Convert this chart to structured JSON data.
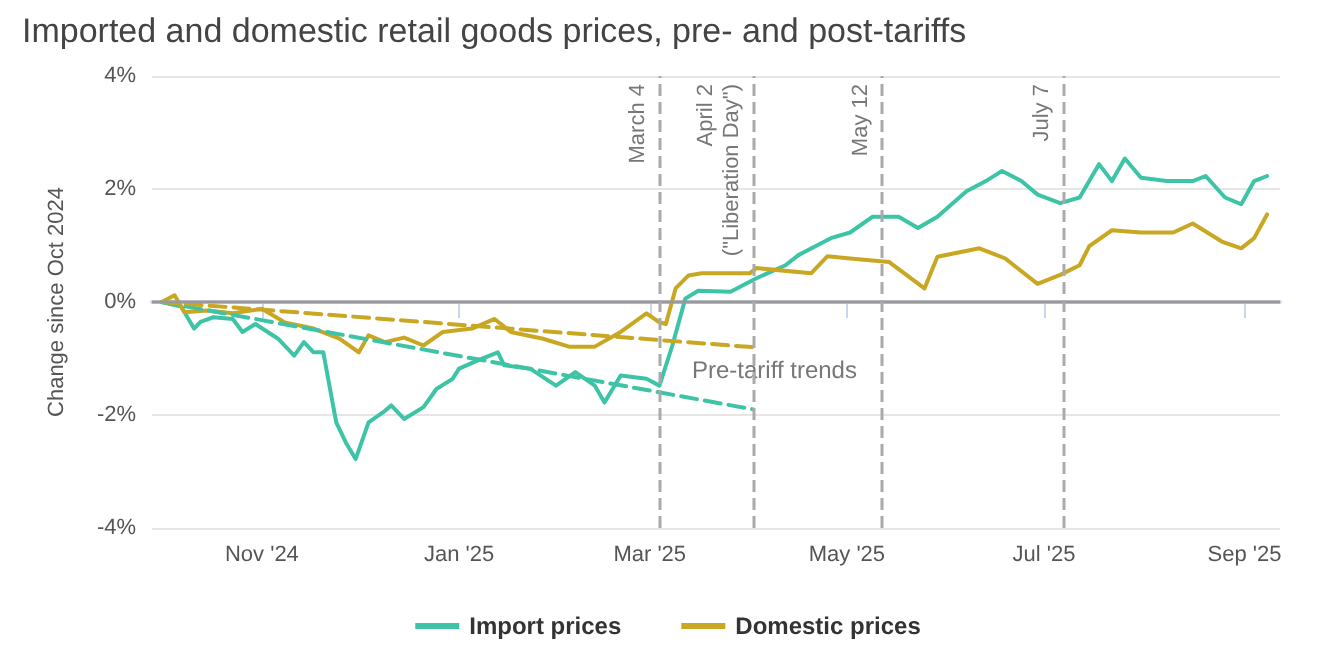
{
  "chart_data": {
    "type": "line",
    "title": "Imported and domestic retail goods prices, pre- and post-tariffs",
    "ylabel": "Change since Oct 2024",
    "xlim": [
      "2024-09-28",
      "2025-09-12"
    ],
    "xticks": [
      {
        "value": "2024-11-01",
        "label": "Nov '24"
      },
      {
        "value": "2025-01-01",
        "label": "Jan '25"
      },
      {
        "value": "2025-03-01",
        "label": "Mar '25"
      },
      {
        "value": "2025-05-01",
        "label": "May '25"
      },
      {
        "value": "2025-07-01",
        "label": "Jul '25"
      },
      {
        "value": "2025-09-01",
        "label": "Sep '25"
      }
    ],
    "ylim": [
      -4,
      4
    ],
    "yticks": [
      {
        "value": -4,
        "label": "-4%"
      },
      {
        "value": -2,
        "label": "-2%"
      },
      {
        "value": 0,
        "label": "0%"
      },
      {
        "value": 2,
        "label": "2%"
      },
      {
        "value": 4,
        "label": "4%"
      }
    ],
    "grid": "y",
    "legend": "bottom",
    "marker": "none",
    "line_style": "solid",
    "series": [
      {
        "name": "Import prices",
        "color": "#3dc4a6",
        "x": [
          "2024-10-01",
          "2024-10-07",
          "2024-10-11",
          "2024-10-13",
          "2024-10-17",
          "2024-10-23",
          "2024-10-26",
          "2024-10-30",
          "2024-11-06",
          "2024-11-11",
          "2024-11-14",
          "2024-11-17",
          "2024-11-20",
          "2024-11-24",
          "2024-11-27",
          "2024-11-30",
          "2024-12-04",
          "2024-12-09",
          "2024-12-11",
          "2024-12-15",
          "2024-12-21",
          "2024-12-25",
          "2024-12-30",
          "2025-01-01",
          "2025-01-07",
          "2025-01-13",
          "2025-01-15",
          "2025-01-23",
          "2025-01-31",
          "2025-02-06",
          "2025-02-12",
          "2025-02-15",
          "2025-02-20",
          "2025-02-28",
          "2025-03-04",
          "2025-03-08",
          "2025-03-12",
          "2025-03-16",
          "2025-03-26",
          "2025-04-03",
          "2025-04-12",
          "2025-04-16",
          "2025-04-22",
          "2025-04-26",
          "2025-05-02",
          "2025-05-09",
          "2025-05-17",
          "2025-05-23",
          "2025-05-29",
          "2025-06-07",
          "2025-06-13",
          "2025-06-18",
          "2025-06-24",
          "2025-06-29",
          "2025-07-06",
          "2025-07-12",
          "2025-07-18",
          "2025-07-22",
          "2025-07-26",
          "2025-07-31",
          "2025-08-08",
          "2025-08-16",
          "2025-08-20",
          "2025-08-26",
          "2025-08-31",
          "2025-09-04",
          "2025-09-08"
        ],
        "values": [
          0,
          -0.08,
          -0.47,
          -0.35,
          -0.27,
          -0.3,
          -0.53,
          -0.39,
          -0.65,
          -0.95,
          -0.71,
          -0.89,
          -0.89,
          -2.13,
          -2.49,
          -2.78,
          -2.13,
          -1.93,
          -1.83,
          -2.07,
          -1.86,
          -1.54,
          -1.36,
          -1.18,
          -1.03,
          -0.89,
          -1.12,
          -1.18,
          -1.48,
          -1.24,
          -1.48,
          -1.78,
          -1.3,
          -1.36,
          -1.48,
          -0.77,
          0.06,
          0.2,
          0.18,
          0.42,
          0.65,
          0.83,
          1.01,
          1.13,
          1.23,
          1.51,
          1.51,
          1.31,
          1.51,
          1.96,
          2.14,
          2.32,
          2.14,
          1.9,
          1.75,
          1.85,
          2.44,
          2.14,
          2.54,
          2.2,
          2.14,
          2.14,
          2.23,
          1.85,
          1.73,
          2.14,
          2.23
        ]
      },
      {
        "name": "Domestic prices",
        "color": "#c9a722",
        "x": [
          "2024-10-01",
          "2024-10-05",
          "2024-10-08",
          "2024-10-15",
          "2024-10-23",
          "2024-11-01",
          "2024-11-08",
          "2024-11-17",
          "2024-11-25",
          "2024-12-01",
          "2024-12-04",
          "2024-12-09",
          "2024-12-15",
          "2024-12-21",
          "2024-12-27",
          "2025-01-05",
          "2025-01-12",
          "2025-01-17",
          "2025-01-27",
          "2025-02-04",
          "2025-02-12",
          "2025-02-20",
          "2025-02-28",
          "2025-03-04",
          "2025-03-06",
          "2025-03-09",
          "2025-03-13",
          "2025-03-17",
          "2025-04-01",
          "2025-04-03",
          "2025-04-20",
          "2025-04-25",
          "2025-05-02",
          "2025-05-14",
          "2025-05-25",
          "2025-05-29",
          "2025-06-11",
          "2025-06-19",
          "2025-06-29",
          "2025-07-06",
          "2025-07-12",
          "2025-07-15",
          "2025-07-22",
          "2025-07-31",
          "2025-08-10",
          "2025-08-16",
          "2025-08-25",
          "2025-08-31",
          "2025-09-04",
          "2025-09-08"
        ],
        "values": [
          0,
          0.12,
          -0.18,
          -0.15,
          -0.2,
          -0.12,
          -0.36,
          -0.47,
          -0.65,
          -0.89,
          -0.59,
          -0.71,
          -0.63,
          -0.77,
          -0.53,
          -0.47,
          -0.3,
          -0.53,
          -0.65,
          -0.79,
          -0.79,
          -0.53,
          -0.2,
          -0.36,
          -0.39,
          0.24,
          0.47,
          0.51,
          0.51,
          0.6,
          0.51,
          0.81,
          0.77,
          0.71,
          0.24,
          0.8,
          0.95,
          0.77,
          0.32,
          0.48,
          0.65,
          0.99,
          1.27,
          1.23,
          1.23,
          1.39,
          1.07,
          0.95,
          1.13,
          1.55
        ]
      },
      {
        "type": "line",
        "line_style": "dashed",
        "color": "#3dc4a6",
        "x": [
          "2024-10-01",
          "2025-04-02"
        ],
        "values": [
          0,
          -1.9
        ]
      },
      {
        "type": "line",
        "line_style": "dashed",
        "color": "#c9a722",
        "x": [
          "2024-10-01",
          "2025-04-02"
        ],
        "values": [
          0,
          -0.8
        ]
      }
    ],
    "ref_lines": [
      {
        "axis": "y",
        "value": 0,
        "label": null,
        "color": "#999999",
        "line_style": "solid"
      },
      {
        "axis": "x",
        "value": "2025-03-04",
        "label": "March 4",
        "color": "#aaaaaa",
        "line_style": "dashed"
      },
      {
        "axis": "x",
        "value": "2025-04-02",
        "label": "April 2\n(\"Liberation Day\")",
        "color": "#aaaaaa",
        "line_style": "dashed"
      },
      {
        "axis": "x",
        "value": "2025-05-12",
        "label": "May 12",
        "color": "#aaaaaa",
        "line_style": "dashed"
      },
      {
        "axis": "x",
        "value": "2025-07-07",
        "label": "July 7",
        "color": "#aaaaaa",
        "line_style": "dashed"
      }
    ],
    "annotations": [
      "Pre-tariff trends"
    ]
  }
}
